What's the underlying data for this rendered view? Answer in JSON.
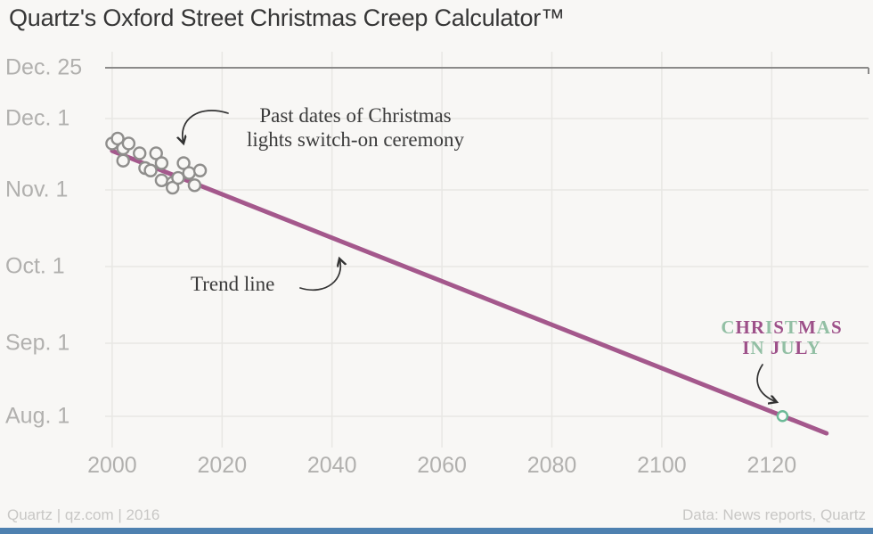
{
  "title": "Quartz's Oxford Street Christmas Creep Calculator™",
  "chart_data": {
    "type": "scatter",
    "x_axis": {
      "ticks": [
        "2000",
        "2020",
        "2040",
        "2060",
        "2080",
        "2100",
        "2120"
      ],
      "range": [
        1998,
        2133
      ]
    },
    "y_axis": {
      "ticks": [
        "Dec. 25",
        "Dec. 1",
        "Nov. 1",
        "Oct. 1",
        "Sep. 1",
        "Aug. 1"
      ],
      "range_note": "dates of year, Dec 25 top to Aug 1 bottom"
    },
    "points": [
      {
        "year": 2000,
        "date": "Nov 20"
      },
      {
        "year": 2001,
        "date": "Nov 22"
      },
      {
        "year": 2002,
        "date": "Nov 13"
      },
      {
        "year": 2002,
        "date": "Nov 18"
      },
      {
        "year": 2003,
        "date": "Nov 20"
      },
      {
        "year": 2005,
        "date": "Nov 16"
      },
      {
        "year": 2006,
        "date": "Nov 10"
      },
      {
        "year": 2007,
        "date": "Nov 9"
      },
      {
        "year": 2008,
        "date": "Nov 16"
      },
      {
        "year": 2009,
        "date": "Nov 12"
      },
      {
        "year": 2009,
        "date": "Nov 5"
      },
      {
        "year": 2011,
        "date": "Nov 4"
      },
      {
        "year": 2011,
        "date": "Nov 2"
      },
      {
        "year": 2012,
        "date": "Nov 6"
      },
      {
        "year": 2013,
        "date": "Nov 12"
      },
      {
        "year": 2014,
        "date": "Nov 8"
      },
      {
        "year": 2015,
        "date": "Nov 3"
      },
      {
        "year": 2016,
        "date": "Nov 9"
      }
    ],
    "trend_line": {
      "start": {
        "year": 2000,
        "date": "Nov 17"
      },
      "end": {
        "year": 2130,
        "date": "Jul 25"
      }
    },
    "projected_point": {
      "year": 2122,
      "date": "Aug 1"
    }
  },
  "annotations": {
    "scatter_label_line1": "Past dates of Christmas",
    "scatter_label_line2": "lights switch-on ceremony",
    "trend_label": "Trend line",
    "projection_label": {
      "line1": [
        {
          "t": "C",
          "c": "g"
        },
        {
          "t": "H",
          "c": "p"
        },
        {
          "t": "R",
          "c": "p"
        },
        {
          "t": "I",
          "c": "g"
        },
        {
          "t": "S",
          "c": "p"
        },
        {
          "t": "T",
          "c": "g"
        },
        {
          "t": "M",
          "c": "p"
        },
        {
          "t": "A",
          "c": "g"
        },
        {
          "t": "S",
          "c": "p"
        }
      ],
      "line2": [
        {
          "t": "I",
          "c": "p"
        },
        {
          "t": "N",
          "c": "g"
        },
        {
          "t": " ",
          "c": "g"
        },
        {
          "t": "J",
          "c": "p"
        },
        {
          "t": "U",
          "c": "g"
        },
        {
          "t": "L",
          "c": "p"
        },
        {
          "t": "Y",
          "c": "g"
        }
      ]
    }
  },
  "footer": {
    "left": "Quartz | qz.com | 2016",
    "right": "Data: News reports, Quartz"
  },
  "colors": {
    "background": "#f8f7f5",
    "trend_line": "#a4588c",
    "point_stroke": "#8f8e8c",
    "marker_green": "#6cba97",
    "grid_light": "#e8e7e4",
    "grid_dark": "#8b8a89",
    "axis_text": "#b1b0ae",
    "annot_green": "#92bfa4",
    "annot_purple": "#9d5089",
    "bottom_bar": "#4e81b0"
  }
}
